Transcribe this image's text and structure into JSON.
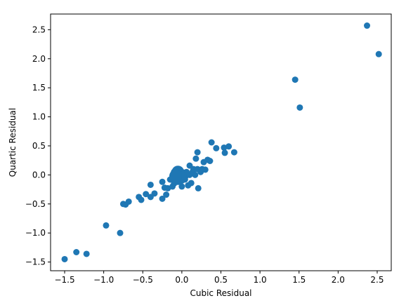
{
  "chart_data": {
    "type": "scatter",
    "title": "",
    "xlabel": "Cubic Residual",
    "ylabel": "Quartic Residual",
    "xlim": [
      -1.68,
      2.68
    ],
    "ylim": [
      -1.65,
      2.77
    ],
    "xticks": [
      -1.5,
      -1.0,
      -0.5,
      0.0,
      0.5,
      1.0,
      1.5,
      2.0,
      2.5
    ],
    "xtick_labels": [
      "−1.5",
      "−1.0",
      "−0.5",
      "0.0",
      "0.5",
      "1.0",
      "1.5",
      "2.0",
      "2.5"
    ],
    "yticks": [
      -1.5,
      -1.0,
      -0.5,
      0.0,
      0.5,
      1.0,
      1.5,
      2.0,
      2.5
    ],
    "ytick_labels": [
      "−1.5",
      "−1.0",
      "−0.5",
      "0.0",
      "0.5",
      "1.0",
      "1.5",
      "2.0",
      "2.5"
    ],
    "grid": false,
    "color": "#1f77b4",
    "points": [
      {
        "x": -1.5,
        "y": -1.45
      },
      {
        "x": -1.35,
        "y": -1.33
      },
      {
        "x": -1.22,
        "y": -1.36
      },
      {
        "x": -0.97,
        "y": -0.87
      },
      {
        "x": -0.79,
        "y": -1.0
      },
      {
        "x": -0.75,
        "y": -0.5
      },
      {
        "x": -0.72,
        "y": -0.51
      },
      {
        "x": -0.68,
        "y": -0.46
      },
      {
        "x": -0.55,
        "y": -0.38
      },
      {
        "x": -0.52,
        "y": -0.43
      },
      {
        "x": -0.46,
        "y": -0.33
      },
      {
        "x": -0.4,
        "y": -0.38
      },
      {
        "x": -0.4,
        "y": -0.17
      },
      {
        "x": -0.35,
        "y": -0.32
      },
      {
        "x": -0.25,
        "y": -0.41
      },
      {
        "x": -0.25,
        "y": -0.12
      },
      {
        "x": -0.22,
        "y": -0.22
      },
      {
        "x": -0.2,
        "y": -0.34
      },
      {
        "x": -0.18,
        "y": -0.23
      },
      {
        "x": -0.15,
        "y": -0.08
      },
      {
        "x": -0.12,
        "y": -0.2
      },
      {
        "x": -0.1,
        "y": -0.15
      },
      {
        "x": -0.1,
        "y": 0.05
      },
      {
        "x": -0.08,
        "y": -0.05
      },
      {
        "x": -0.06,
        "y": 0.08
      },
      {
        "x": -0.05,
        "y": -0.12
      },
      {
        "x": -0.04,
        "y": 0.0
      },
      {
        "x": -0.02,
        "y": 0.03
      },
      {
        "x": 0.0,
        "y": -0.05
      },
      {
        "x": 0.0,
        "y": -0.2
      },
      {
        "x": 0.02,
        "y": 0.04
      },
      {
        "x": 0.04,
        "y": -0.08
      },
      {
        "x": 0.05,
        "y": -0.02
      },
      {
        "x": 0.06,
        "y": 0.05
      },
      {
        "x": 0.08,
        "y": -0.18
      },
      {
        "x": 0.1,
        "y": 0.0
      },
      {
        "x": 0.1,
        "y": 0.16
      },
      {
        "x": 0.12,
        "y": -0.14
      },
      {
        "x": 0.14,
        "y": 0.06
      },
      {
        "x": 0.15,
        "y": 0.1
      },
      {
        "x": 0.17,
        "y": 0.0
      },
      {
        "x": 0.18,
        "y": 0.28
      },
      {
        "x": 0.2,
        "y": 0.1
      },
      {
        "x": 0.2,
        "y": 0.39
      },
      {
        "x": 0.21,
        "y": -0.23
      },
      {
        "x": 0.24,
        "y": 0.05
      },
      {
        "x": 0.26,
        "y": 0.1
      },
      {
        "x": 0.28,
        "y": 0.22
      },
      {
        "x": 0.3,
        "y": 0.09
      },
      {
        "x": 0.33,
        "y": 0.26
      },
      {
        "x": 0.36,
        "y": 0.24
      },
      {
        "x": 0.38,
        "y": 0.56
      },
      {
        "x": 0.44,
        "y": 0.46
      },
      {
        "x": 0.54,
        "y": 0.47
      },
      {
        "x": 0.55,
        "y": 0.38
      },
      {
        "x": 0.6,
        "y": 0.49
      },
      {
        "x": 0.67,
        "y": 0.39
      },
      {
        "x": 1.45,
        "y": 1.64
      },
      {
        "x": 1.51,
        "y": 1.16
      },
      {
        "x": 2.37,
        "y": 2.57
      },
      {
        "x": 2.52,
        "y": 2.08
      },
      {
        "x": -0.05,
        "y": 0.05,
        "big": true
      },
      {
        "x": -0.02,
        "y": -0.05,
        "big": true
      },
      {
        "x": -0.08,
        "y": -0.02,
        "big": true
      }
    ]
  }
}
